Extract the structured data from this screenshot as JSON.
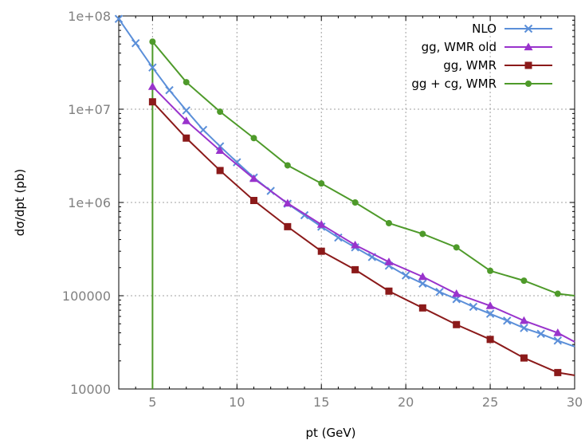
{
  "chart_data": {
    "type": "line",
    "xlabel": "pt (GeV)",
    "ylabel": "dσ/dpt (pb)",
    "xlim": [
      3,
      30
    ],
    "ylim": [
      10000,
      100000000
    ],
    "yscale": "log",
    "grid": true,
    "legend_position": "top-right",
    "x_ticks": [
      5,
      10,
      15,
      20,
      25,
      30
    ],
    "x_tick_labels": [
      "5",
      "10",
      "15",
      "20",
      "25",
      "30"
    ],
    "y_ticks": [
      10000,
      100000,
      1000000,
      10000000,
      100000000
    ],
    "y_tick_labels": [
      "10000",
      "100000",
      "1e+06",
      "1e+07",
      "1e+08"
    ],
    "series": [
      {
        "name": "NLO",
        "color": "#5b8fd9",
        "marker": "x",
        "x": [
          3,
          4,
          5,
          6,
          7,
          8,
          9,
          10,
          11,
          12,
          13,
          14,
          15,
          16,
          17,
          18,
          19,
          20,
          21,
          22,
          23,
          24,
          25,
          26,
          27,
          28,
          29,
          30
        ],
        "y": [
          93000000,
          51000000,
          28000000,
          16000000,
          9700000,
          6000000,
          4000000,
          2700000,
          1850000,
          1330000,
          970000,
          730000,
          550000,
          420000,
          330000,
          260000,
          210000,
          165000,
          135000,
          110000,
          92000,
          76000,
          64000,
          54000,
          45000,
          39000,
          33000,
          28500
        ]
      },
      {
        "name": "gg, WMR old",
        "color": "#9933cc",
        "marker": "triangle",
        "x": [
          5,
          7,
          9,
          11,
          13,
          15,
          17,
          19,
          21,
          23,
          25,
          27,
          29,
          30
        ],
        "y": [
          17500000,
          7500000,
          3600000,
          1800000,
          980000,
          580000,
          350000,
          230000,
          160000,
          105000,
          78000,
          54000,
          40000,
          32000
        ]
      },
      {
        "name": "gg, WMR",
        "color": "#8b1a1a",
        "marker": "square",
        "x": [
          5,
          7,
          9,
          11,
          13,
          15,
          17,
          19,
          21,
          23,
          25,
          27,
          29,
          30
        ],
        "y": [
          12000000,
          4900000,
          2200000,
          1050000,
          550000,
          300000,
          190000,
          112000,
          74000,
          49000,
          34000,
          21500,
          15000,
          14000
        ]
      },
      {
        "name": "gg + cg, WMR",
        "color": "#4e9a2a",
        "marker": "circle",
        "x": [
          5,
          7,
          9,
          11,
          13,
          15,
          17,
          19,
          21,
          23,
          25,
          27,
          29,
          30
        ],
        "y": [
          53000000,
          19500000,
          9400000,
          4900000,
          2500000,
          1600000,
          1000000,
          600000,
          460000,
          330000,
          185000,
          145000,
          105000,
          100000
        ]
      }
    ],
    "annotations": [
      {
        "type": "vertical_line",
        "x": 5,
        "from_y": 10000,
        "to_y": 53000000,
        "color": "#4e9a2a"
      }
    ]
  }
}
